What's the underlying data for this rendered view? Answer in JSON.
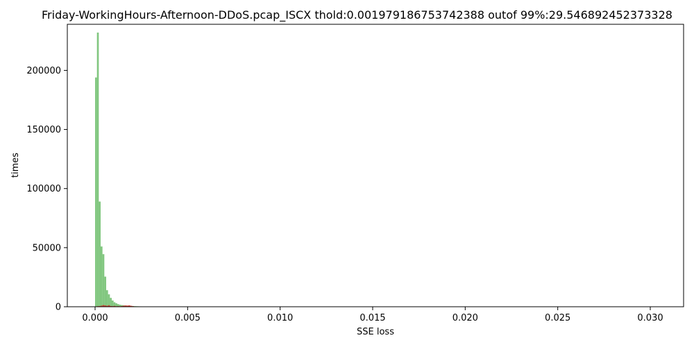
{
  "chart_data": {
    "type": "bar",
    "title": "Friday-WorkingHours-Afternoon-DDoS.pcap_ISCX thold:0.001979186753742388 outof 99%:29.546892452373328",
    "xlabel": "SSE loss",
    "ylabel": "times",
    "xlim": [
      -0.0015,
      0.0318
    ],
    "ylim": [
      0,
      239000
    ],
    "x_ticks": [
      {
        "value": 0.0,
        "label": "0.000"
      },
      {
        "value": 0.005,
        "label": "0.005"
      },
      {
        "value": 0.01,
        "label": "0.010"
      },
      {
        "value": 0.015,
        "label": "0.015"
      },
      {
        "value": 0.02,
        "label": "0.020"
      },
      {
        "value": 0.025,
        "label": "0.025"
      },
      {
        "value": 0.03,
        "label": "0.030"
      }
    ],
    "y_ticks": [
      {
        "value": 0,
        "label": "0"
      },
      {
        "value": 50000,
        "label": "50000"
      },
      {
        "value": 100000,
        "label": "100000"
      },
      {
        "value": 150000,
        "label": "150000"
      },
      {
        "value": 200000,
        "label": "200000"
      }
    ],
    "bin_width": 0.0001,
    "grid": false,
    "series": [
      {
        "color": "#4daf4a",
        "opacity": 0.7,
        "bins": [
          {
            "x0": 0.0,
            "value": 194000
          },
          {
            "x0": 0.0001,
            "value": 232000
          },
          {
            "x0": 0.0002,
            "value": 89000
          },
          {
            "x0": 0.0003,
            "value": 51000
          },
          {
            "x0": 0.0004,
            "value": 44500
          },
          {
            "x0": 0.0005,
            "value": 25500
          },
          {
            "x0": 0.0006,
            "value": 14000
          },
          {
            "x0": 0.0007,
            "value": 10500
          },
          {
            "x0": 0.0008,
            "value": 7500
          },
          {
            "x0": 0.0009,
            "value": 5300
          },
          {
            "x0": 0.001,
            "value": 3800
          },
          {
            "x0": 0.0011,
            "value": 2900
          },
          {
            "x0": 0.0012,
            "value": 2200
          },
          {
            "x0": 0.0013,
            "value": 1700
          },
          {
            "x0": 0.0014,
            "value": 1400
          },
          {
            "x0": 0.0015,
            "value": 1200
          },
          {
            "x0": 0.0016,
            "value": 1000
          },
          {
            "x0": 0.0017,
            "value": 900
          },
          {
            "x0": 0.0018,
            "value": 800
          },
          {
            "x0": 0.0019,
            "value": 700
          },
          {
            "x0": 0.002,
            "value": 600
          },
          {
            "x0": 0.0021,
            "value": 500
          },
          {
            "x0": 0.0022,
            "value": 420
          },
          {
            "x0": 0.0023,
            "value": 360
          },
          {
            "x0": 0.0024,
            "value": 300
          },
          {
            "x0": 0.0025,
            "value": 250
          },
          {
            "x0": 0.0026,
            "value": 210
          },
          {
            "x0": 0.0027,
            "value": 180
          },
          {
            "x0": 0.0028,
            "value": 150
          },
          {
            "x0": 0.0029,
            "value": 130
          },
          {
            "x0": 0.003,
            "value": 110
          },
          {
            "x0": 0.0031,
            "value": 90
          },
          {
            "x0": 0.0032,
            "value": 80
          },
          {
            "x0": 0.0033,
            "value": 70
          },
          {
            "x0": 0.0034,
            "value": 60
          }
        ]
      },
      {
        "color": "#e41a1c",
        "opacity": 0.75,
        "bins": [
          {
            "x0": 0.0,
            "value": 300
          },
          {
            "x0": 0.0001,
            "value": 500
          },
          {
            "x0": 0.0002,
            "value": 600
          },
          {
            "x0": 0.0003,
            "value": 900
          },
          {
            "x0": 0.0004,
            "value": 1400
          },
          {
            "x0": 0.0005,
            "value": 1100
          },
          {
            "x0": 0.0006,
            "value": 800
          },
          {
            "x0": 0.0007,
            "value": 1300
          },
          {
            "x0": 0.0008,
            "value": 600
          },
          {
            "x0": 0.0009,
            "value": 500
          },
          {
            "x0": 0.001,
            "value": 700
          },
          {
            "x0": 0.0011,
            "value": 400
          },
          {
            "x0": 0.0012,
            "value": 500
          },
          {
            "x0": 0.0013,
            "value": 400
          },
          {
            "x0": 0.0014,
            "value": 600
          },
          {
            "x0": 0.0015,
            "value": 900
          },
          {
            "x0": 0.0016,
            "value": 1100
          },
          {
            "x0": 0.0017,
            "value": 1000
          },
          {
            "x0": 0.0018,
            "value": 1200
          },
          {
            "x0": 0.0019,
            "value": 800
          },
          {
            "x0": 0.002,
            "value": 500
          },
          {
            "x0": 0.0021,
            "value": 300
          },
          {
            "x0": 0.0022,
            "value": 250
          },
          {
            "x0": 0.0023,
            "value": 200
          },
          {
            "x0": 0.0024,
            "value": 180
          },
          {
            "x0": 0.0025,
            "value": 150
          },
          {
            "x0": 0.0026,
            "value": 130
          },
          {
            "x0": 0.0027,
            "value": 110
          },
          {
            "x0": 0.0028,
            "value": 100
          },
          {
            "x0": 0.0029,
            "value": 90
          },
          {
            "x0": 0.003,
            "value": 80
          },
          {
            "x0": 0.0031,
            "value": 70
          },
          {
            "x0": 0.0032,
            "value": 60
          },
          {
            "x0": 0.0033,
            "value": 50
          },
          {
            "x0": 0.0034,
            "value": 40
          }
        ]
      }
    ]
  }
}
